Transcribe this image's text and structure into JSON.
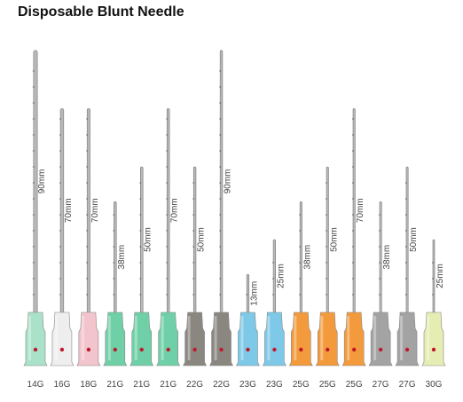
{
  "title": "Disposable Blunt Needle",
  "needles": [
    {
      "gauge": "14G",
      "length": "90mm",
      "color": "#a9e2c9"
    },
    {
      "gauge": "16G",
      "length": "70mm",
      "color": "#eeeeee"
    },
    {
      "gauge": "18G",
      "length": "70mm",
      "color": "#f2c4cb"
    },
    {
      "gauge": "21G",
      "length": "38mm",
      "color": "#6fd0a7"
    },
    {
      "gauge": "21G",
      "length": "50mm",
      "color": "#6fd0a7"
    },
    {
      "gauge": "21G",
      "length": "70mm",
      "color": "#6fd0a7"
    },
    {
      "gauge": "22G",
      "length": "50mm",
      "color": "#8a8680"
    },
    {
      "gauge": "22G",
      "length": "90mm",
      "color": "#8a8680"
    },
    {
      "gauge": "23G",
      "length": "13mm",
      "color": "#7dc9e7"
    },
    {
      "gauge": "23G",
      "length": "25mm",
      "color": "#7dc9e7"
    },
    {
      "gauge": "25G",
      "length": "38mm",
      "color": "#f39a3c"
    },
    {
      "gauge": "25G",
      "length": "50mm",
      "color": "#f39a3c"
    },
    {
      "gauge": "25G",
      "length": "70mm",
      "color": "#f39a3c"
    },
    {
      "gauge": "27G",
      "length": "38mm",
      "color": "#a3a3a3"
    },
    {
      "gauge": "27G",
      "length": "50mm",
      "color": "#a3a3a3"
    },
    {
      "gauge": "30G",
      "length": "25mm",
      "color": "#e6edb2"
    }
  ]
}
